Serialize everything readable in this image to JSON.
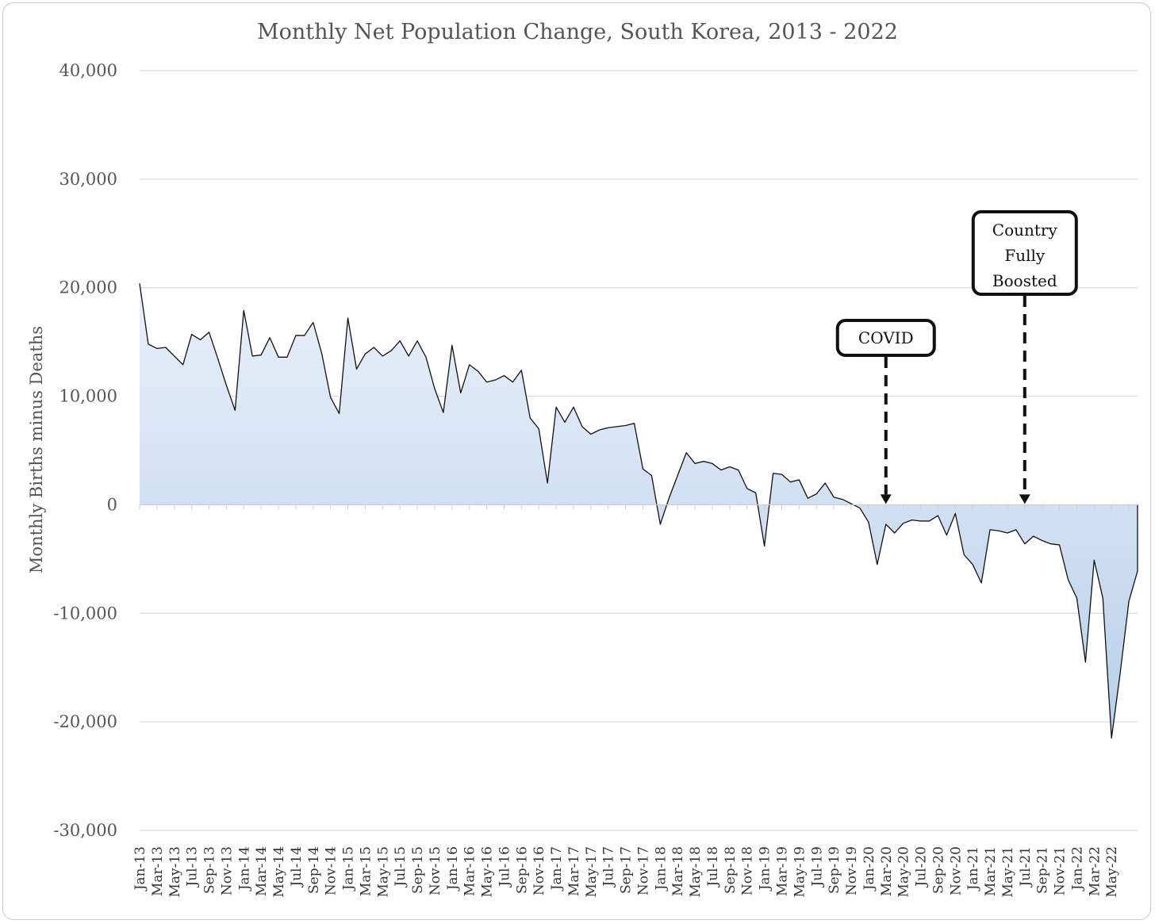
{
  "chart_data": {
    "type": "area",
    "title": "Monthly Net Population Change, South Korea, 2013 - 2022",
    "ylabel": "Monthly Births minus Deaths",
    "xlabel": "",
    "ylim": [
      -30000,
      40000
    ],
    "y_ticks": [
      "40,000",
      "30,000",
      "20,000",
      "10,000",
      "0",
      "-10,000",
      "-20,000",
      "-30,000"
    ],
    "y_tick_values": [
      40000,
      30000,
      20000,
      10000,
      0,
      -10000,
      -20000,
      -30000
    ],
    "grid": true,
    "x_tick_labels": [
      "Jan-13",
      "Mar-13",
      "May-13",
      "Jul-13",
      "Sep-13",
      "Nov-13",
      "Jan-14",
      "Mar-14",
      "May-14",
      "Jul-14",
      "Sep-14",
      "Nov-14",
      "Jan-15",
      "Mar-15",
      "May-15",
      "Jul-15",
      "Sep-15",
      "Nov-15",
      "Jan-16",
      "Mar-16",
      "May-16",
      "Jul-16",
      "Sep-16",
      "Nov-16",
      "Jan-17",
      "Mar-17",
      "May-17",
      "Jul-17",
      "Sep-17",
      "Nov-17",
      "Jan-18",
      "Mar-18",
      "May-18",
      "Jul-18",
      "Sep-18",
      "Nov-18",
      "Jan-19",
      "Mar-19",
      "May-19",
      "Jul-19",
      "Sep-19",
      "Nov-19",
      "Jan-20",
      "Mar-20",
      "May-20",
      "Jul-20",
      "Sep-20",
      "Nov-20",
      "Jan-21",
      "Mar-21",
      "May-21",
      "Jul-21",
      "Sep-21",
      "Nov-21",
      "Jan-22",
      "Mar-22",
      "May-22"
    ],
    "start_month": "Jan-13",
    "values": [
      20400,
      14800,
      14400,
      14500,
      13700,
      12900,
      15700,
      15200,
      15900,
      13500,
      11000,
      8700,
      17900,
      13700,
      13800,
      15400,
      13600,
      13600,
      15600,
      15600,
      16800,
      13900,
      9900,
      8400,
      17200,
      12500,
      13900,
      14500,
      13700,
      14200,
      15100,
      13700,
      15100,
      13600,
      10700,
      8500,
      14700,
      10300,
      12900,
      12300,
      11300,
      11500,
      11900,
      11300,
      12400,
      8000,
      7000,
      2000,
      9000,
      7600,
      9000,
      7200,
      6500,
      6900,
      7100,
      7200,
      7300,
      7500,
      3300,
      2700,
      -1800,
      600,
      2700,
      4800,
      3800,
      4000,
      3800,
      3200,
      3500,
      3200,
      1500,
      1100,
      -3800,
      2900,
      2800,
      2100,
      2300,
      600,
      1000,
      2000,
      700,
      500,
      100,
      -300,
      -1600,
      -5500,
      -1800,
      -2600,
      -1700,
      -1400,
      -1500,
      -1500,
      -1000,
      -2800,
      -800,
      -4600,
      -5500,
      -7200,
      -2300,
      -2400,
      -2600,
      -2300,
      -3600,
      -2900,
      -3300,
      -3600,
      -3700,
      -6900,
      -8600,
      -14500,
      -5100,
      -8600,
      -21500,
      -15500,
      -8900,
      -6100
    ],
    "annotations": [
      {
        "label_lines": [
          "COVID"
        ],
        "target_month": "Mar-20"
      },
      {
        "label_lines": [
          "Country",
          "Fully",
          "Boosted"
        ],
        "target_month": "Jul-21"
      }
    ],
    "colors": {
      "fill_top": "#e9f0fa",
      "fill_bottom": "#b8d0ea",
      "line": "#111111",
      "grid": "#d9d9d9"
    }
  }
}
